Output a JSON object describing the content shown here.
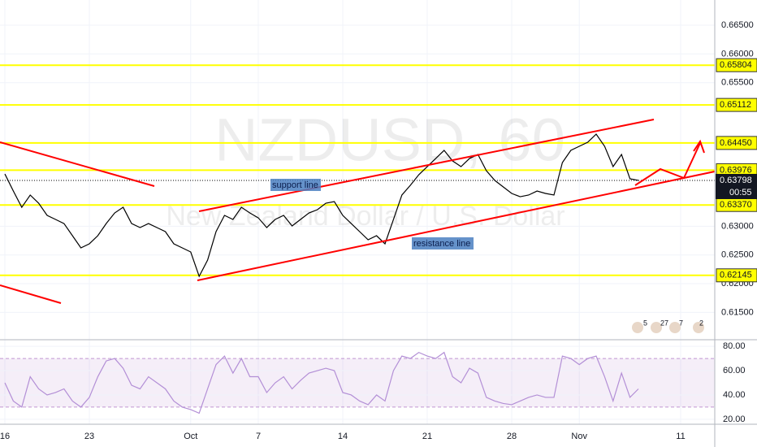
{
  "chart_data": [
    {
      "type": "line",
      "title": "NZDUSD, 60",
      "subtitle": "New Zealand Dollar / U.S. Dollar",
      "categories": [
        "16",
        null,
        null,
        null,
        null,
        null,
        null,
        null,
        null,
        null,
        "23",
        null,
        null,
        null,
        null,
        null,
        null,
        null,
        null,
        null,
        null,
        null,
        "Oct",
        null,
        null,
        null,
        null,
        null,
        null,
        null,
        "7",
        null,
        null,
        null,
        null,
        null,
        null,
        null,
        null,
        null,
        "14",
        null,
        null,
        null,
        null,
        null,
        null,
        null,
        null,
        null,
        "21",
        null,
        null,
        null,
        null,
        null,
        null,
        null,
        null,
        null,
        "28",
        null,
        null,
        null,
        null,
        null,
        null,
        null,
        "Nov",
        null,
        null,
        null,
        null,
        null,
        null,
        null,
        null,
        null,
        null,
        null,
        "11"
      ],
      "values": [
        0.6391,
        0.63613,
        0.6333,
        0.63543,
        0.63401,
        0.63189,
        0.63118,
        0.63047,
        0.62835,
        0.62623,
        0.62694,
        0.62835,
        0.63047,
        0.63231,
        0.6333,
        0.63047,
        0.62977,
        0.63047,
        0.62977,
        0.62906,
        0.62694,
        0.62623,
        0.62552,
        0.62128,
        0.62411,
        0.62906,
        0.63189,
        0.63118,
        0.6333,
        0.63231,
        0.63146,
        0.62977,
        0.63118,
        0.63189,
        0.63005,
        0.63118,
        0.63231,
        0.63288,
        0.63401,
        0.63429,
        0.63189,
        0.63047,
        0.62906,
        0.62764,
        0.62835,
        0.62694,
        0.63118,
        0.63543,
        0.63712,
        0.63896,
        0.64038,
        0.64179,
        0.64321,
        0.64137,
        0.64038,
        0.64179,
        0.6425,
        0.63967,
        0.63797,
        0.63684,
        0.63571,
        0.63514,
        0.63543,
        0.63613,
        0.63571,
        0.63543,
        0.64109,
        0.64321,
        0.64392,
        0.64462,
        0.64604,
        0.64392,
        0.64038,
        0.6425,
        0.63826,
        0.63798,
        null,
        null,
        null,
        null,
        null
      ],
      "color": "#000000",
      "ylim": [
        0.61024,
        0.66939
      ],
      "yticks": [
        {
          "value": 0.665,
          "label": "0.66500"
        },
        {
          "value": 0.66,
          "label": "0.66000"
        },
        {
          "value": 0.655,
          "label": "0.65500"
        },
        {
          "value": 0.63,
          "label": "0.63000"
        },
        {
          "value": 0.625,
          "label": "0.62500"
        },
        {
          "value": 0.62,
          "label": "0.62000"
        },
        {
          "value": 0.615,
          "label": "0.61500"
        }
      ],
      "levels": [
        0.65804,
        0.65112,
        {
          "value": 0.6445,
          "label": "0.64450"
        },
        0.63976,
        {
          "value": 0.6337,
          "label": "0.63370"
        },
        0.62145
      ],
      "level_color": "#ffff00",
      "last_price": 0.63798,
      "countdown": "00:55",
      "annotations": [
        "support line",
        "resistance line"
      ],
      "events": [
        "5",
        "27",
        "7",
        "2"
      ],
      "grid": true
    },
    {
      "type": "line",
      "values": [
        50,
        35,
        30,
        55,
        45,
        40,
        42,
        45,
        35,
        30,
        38,
        55,
        68,
        70,
        62,
        48,
        45,
        55,
        50,
        45,
        35,
        30,
        28,
        25,
        45,
        65,
        72,
        58,
        70,
        55,
        55,
        42,
        50,
        55,
        45,
        52,
        58,
        60,
        62,
        60,
        42,
        40,
        35,
        32,
        40,
        35,
        60,
        72,
        70,
        75,
        72,
        70,
        75,
        55,
        50,
        62,
        58,
        38,
        35,
        33,
        32,
        35,
        38,
        40,
        38,
        38,
        72,
        70,
        65,
        70,
        72,
        55,
        35,
        58,
        38,
        45,
        null,
        null,
        null,
        null,
        null
      ],
      "color": "#b38fd6",
      "ylim": [
        15.9,
        85.45
      ],
      "yticks": [
        {
          "value": 80,
          "label": "80.00"
        },
        {
          "value": 60,
          "label": "60.00"
        },
        {
          "value": 40,
          "label": "40.00"
        },
        {
          "value": 20,
          "label": "20.00"
        }
      ],
      "band": [
        30,
        70
      ]
    }
  ]
}
